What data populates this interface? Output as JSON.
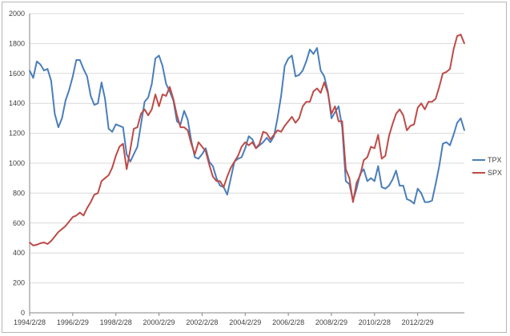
{
  "chart_data": {
    "type": "line",
    "title": "",
    "xlabel": "",
    "ylabel": "",
    "ylim": [
      0,
      2000
    ],
    "y_ticks": [
      0,
      200,
      400,
      600,
      800,
      1000,
      1200,
      1400,
      1600,
      1800,
      2000
    ],
    "x_ticks": [
      "1994/2/28",
      "1996/2/29",
      "1998/2/28",
      "2000/2/29",
      "2002/2/28",
      "2004/2/29",
      "2006/2/28",
      "2008/2/29",
      "2010/2/28",
      "2012/2/29"
    ],
    "grid": "horizontal",
    "legend_position": "right",
    "x_start": "1994-02",
    "x_end": "2014-04",
    "series": [
      {
        "name": "TPX",
        "color": "#4a7ebb",
        "points": [
          [
            "1994-02",
            1620
          ],
          [
            "1994-04",
            1570
          ],
          [
            "1994-06",
            1680
          ],
          [
            "1994-08",
            1660
          ],
          [
            "1994-10",
            1620
          ],
          [
            "1994-12",
            1630
          ],
          [
            "1995-02",
            1550
          ],
          [
            "1995-04",
            1330
          ],
          [
            "1995-06",
            1240
          ],
          [
            "1995-08",
            1300
          ],
          [
            "1995-10",
            1420
          ],
          [
            "1995-12",
            1490
          ],
          [
            "1996-02",
            1580
          ],
          [
            "1996-04",
            1690
          ],
          [
            "1996-06",
            1690
          ],
          [
            "1996-08",
            1630
          ],
          [
            "1996-10",
            1580
          ],
          [
            "1996-12",
            1450
          ],
          [
            "1997-02",
            1390
          ],
          [
            "1997-04",
            1400
          ],
          [
            "1997-06",
            1540
          ],
          [
            "1997-08",
            1430
          ],
          [
            "1997-10",
            1230
          ],
          [
            "1997-12",
            1210
          ],
          [
            "1998-02",
            1260
          ],
          [
            "1998-04",
            1250
          ],
          [
            "1998-06",
            1240
          ],
          [
            "1998-08",
            1060
          ],
          [
            "1998-10",
            1010
          ],
          [
            "1998-12",
            1060
          ],
          [
            "1999-02",
            1110
          ],
          [
            "1999-04",
            1260
          ],
          [
            "1999-06",
            1410
          ],
          [
            "1999-08",
            1440
          ],
          [
            "1999-10",
            1530
          ],
          [
            "1999-12",
            1700
          ],
          [
            "2000-02",
            1720
          ],
          [
            "2000-04",
            1650
          ],
          [
            "2000-06",
            1530
          ],
          [
            "2000-08",
            1480
          ],
          [
            "2000-10",
            1420
          ],
          [
            "2000-12",
            1280
          ],
          [
            "2001-02",
            1260
          ],
          [
            "2001-04",
            1350
          ],
          [
            "2001-06",
            1290
          ],
          [
            "2001-08",
            1150
          ],
          [
            "2001-10",
            1040
          ],
          [
            "2001-12",
            1030
          ],
          [
            "2002-02",
            1060
          ],
          [
            "2002-04",
            1100
          ],
          [
            "2002-06",
            1010
          ],
          [
            "2002-08",
            980
          ],
          [
            "2002-10",
            900
          ],
          [
            "2002-12",
            850
          ],
          [
            "2003-02",
            840
          ],
          [
            "2003-04",
            790
          ],
          [
            "2003-06",
            900
          ],
          [
            "2003-08",
            1010
          ],
          [
            "2003-10",
            1030
          ],
          [
            "2003-12",
            1040
          ],
          [
            "2004-02",
            1100
          ],
          [
            "2004-04",
            1180
          ],
          [
            "2004-06",
            1160
          ],
          [
            "2004-08",
            1100
          ],
          [
            "2004-10",
            1120
          ],
          [
            "2004-12",
            1140
          ],
          [
            "2005-02",
            1170
          ],
          [
            "2005-04",
            1140
          ],
          [
            "2005-06",
            1180
          ],
          [
            "2005-08",
            1300
          ],
          [
            "2005-10",
            1450
          ],
          [
            "2005-12",
            1650
          ],
          [
            "2006-02",
            1700
          ],
          [
            "2006-04",
            1720
          ],
          [
            "2006-06",
            1580
          ],
          [
            "2006-08",
            1590
          ],
          [
            "2006-10",
            1620
          ],
          [
            "2006-12",
            1680
          ],
          [
            "2007-02",
            1760
          ],
          [
            "2007-04",
            1730
          ],
          [
            "2007-06",
            1770
          ],
          [
            "2007-08",
            1620
          ],
          [
            "2007-10",
            1580
          ],
          [
            "2007-12",
            1480
          ],
          [
            "2008-02",
            1300
          ],
          [
            "2008-04",
            1340
          ],
          [
            "2008-06",
            1380
          ],
          [
            "2008-08",
            1240
          ],
          [
            "2008-10",
            880
          ],
          [
            "2008-12",
            860
          ],
          [
            "2009-02",
            750
          ],
          [
            "2009-04",
            830
          ],
          [
            "2009-06",
            930
          ],
          [
            "2009-08",
            960
          ],
          [
            "2009-10",
            880
          ],
          [
            "2009-12",
            900
          ],
          [
            "2010-02",
            880
          ],
          [
            "2010-04",
            980
          ],
          [
            "2010-06",
            840
          ],
          [
            "2010-08",
            830
          ],
          [
            "2010-10",
            850
          ],
          [
            "2010-12",
            890
          ],
          [
            "2011-02",
            950
          ],
          [
            "2011-04",
            850
          ],
          [
            "2011-06",
            850
          ],
          [
            "2011-08",
            760
          ],
          [
            "2011-10",
            750
          ],
          [
            "2011-12",
            730
          ],
          [
            "2012-02",
            830
          ],
          [
            "2012-04",
            800
          ],
          [
            "2012-06",
            740
          ],
          [
            "2012-08",
            740
          ],
          [
            "2012-10",
            750
          ],
          [
            "2012-12",
            860
          ],
          [
            "2013-02",
            980
          ],
          [
            "2013-04",
            1130
          ],
          [
            "2013-06",
            1140
          ],
          [
            "2013-08",
            1120
          ],
          [
            "2013-10",
            1190
          ],
          [
            "2013-12",
            1270
          ],
          [
            "2014-02",
            1300
          ],
          [
            "2014-04",
            1220
          ]
        ]
      },
      {
        "name": "SPX",
        "color": "#be4b48",
        "points": [
          [
            "1994-02",
            470
          ],
          [
            "1994-04",
            450
          ],
          [
            "1994-06",
            455
          ],
          [
            "1994-08",
            465
          ],
          [
            "1994-10",
            470
          ],
          [
            "1994-12",
            460
          ],
          [
            "1995-02",
            480
          ],
          [
            "1995-04",
            510
          ],
          [
            "1995-06",
            540
          ],
          [
            "1995-08",
            560
          ],
          [
            "1995-10",
            580
          ],
          [
            "1995-12",
            610
          ],
          [
            "1996-02",
            640
          ],
          [
            "1996-04",
            650
          ],
          [
            "1996-06",
            670
          ],
          [
            "1996-08",
            650
          ],
          [
            "1996-10",
            700
          ],
          [
            "1996-12",
            740
          ],
          [
            "1997-02",
            790
          ],
          [
            "1997-04",
            800
          ],
          [
            "1997-06",
            880
          ],
          [
            "1997-08",
            900
          ],
          [
            "1997-10",
            920
          ],
          [
            "1997-12",
            970
          ],
          [
            "1998-02",
            1050
          ],
          [
            "1998-04",
            1110
          ],
          [
            "1998-06",
            1130
          ],
          [
            "1998-08",
            960
          ],
          [
            "1998-10",
            1090
          ],
          [
            "1998-12",
            1230
          ],
          [
            "1999-02",
            1240
          ],
          [
            "1999-04",
            1330
          ],
          [
            "1999-06",
            1360
          ],
          [
            "1999-08",
            1320
          ],
          [
            "1999-10",
            1360
          ],
          [
            "1999-12",
            1460
          ],
          [
            "2000-02",
            1380
          ],
          [
            "2000-04",
            1460
          ],
          [
            "2000-06",
            1450
          ],
          [
            "2000-08",
            1510
          ],
          [
            "2000-10",
            1430
          ],
          [
            "2000-12",
            1320
          ],
          [
            "2001-02",
            1240
          ],
          [
            "2001-04",
            1240
          ],
          [
            "2001-06",
            1220
          ],
          [
            "2001-08",
            1130
          ],
          [
            "2001-10",
            1060
          ],
          [
            "2001-12",
            1140
          ],
          [
            "2002-02",
            1110
          ],
          [
            "2002-04",
            1080
          ],
          [
            "2002-06",
            990
          ],
          [
            "2002-08",
            910
          ],
          [
            "2002-10",
            880
          ],
          [
            "2002-12",
            880
          ],
          [
            "2003-02",
            840
          ],
          [
            "2003-04",
            910
          ],
          [
            "2003-06",
            970
          ],
          [
            "2003-08",
            1010
          ],
          [
            "2003-10",
            1050
          ],
          [
            "2003-12",
            1110
          ],
          [
            "2004-02",
            1140
          ],
          [
            "2004-04",
            1120
          ],
          [
            "2004-06",
            1140
          ],
          [
            "2004-08",
            1100
          ],
          [
            "2004-10",
            1130
          ],
          [
            "2004-12",
            1210
          ],
          [
            "2005-02",
            1200
          ],
          [
            "2005-04",
            1160
          ],
          [
            "2005-06",
            1190
          ],
          [
            "2005-08",
            1220
          ],
          [
            "2005-10",
            1210
          ],
          [
            "2005-12",
            1250
          ],
          [
            "2006-02",
            1280
          ],
          [
            "2006-04",
            1310
          ],
          [
            "2006-06",
            1270
          ],
          [
            "2006-08",
            1300
          ],
          [
            "2006-10",
            1380
          ],
          [
            "2006-12",
            1410
          ],
          [
            "2007-02",
            1410
          ],
          [
            "2007-04",
            1480
          ],
          [
            "2007-06",
            1500
          ],
          [
            "2007-08",
            1470
          ],
          [
            "2007-10",
            1540
          ],
          [
            "2007-12",
            1470
          ],
          [
            "2008-02",
            1330
          ],
          [
            "2008-04",
            1380
          ],
          [
            "2008-06",
            1280
          ],
          [
            "2008-08",
            1280
          ],
          [
            "2008-10",
            960
          ],
          [
            "2008-12",
            900
          ],
          [
            "2009-02",
            740
          ],
          [
            "2009-04",
            870
          ],
          [
            "2009-06",
            920
          ],
          [
            "2009-08",
            1020
          ],
          [
            "2009-10",
            1040
          ],
          [
            "2009-12",
            1110
          ],
          [
            "2010-02",
            1100
          ],
          [
            "2010-04",
            1190
          ],
          [
            "2010-06",
            1030
          ],
          [
            "2010-08",
            1050
          ],
          [
            "2010-10",
            1180
          ],
          [
            "2010-12",
            1260
          ],
          [
            "2011-02",
            1330
          ],
          [
            "2011-04",
            1360
          ],
          [
            "2011-06",
            1320
          ],
          [
            "2011-08",
            1220
          ],
          [
            "2011-10",
            1250
          ],
          [
            "2011-12",
            1260
          ],
          [
            "2012-02",
            1370
          ],
          [
            "2012-04",
            1400
          ],
          [
            "2012-06",
            1360
          ],
          [
            "2012-08",
            1410
          ],
          [
            "2012-10",
            1410
          ],
          [
            "2012-12",
            1430
          ],
          [
            "2013-02",
            1510
          ],
          [
            "2013-04",
            1600
          ],
          [
            "2013-06",
            1610
          ],
          [
            "2013-08",
            1630
          ],
          [
            "2013-10",
            1760
          ],
          [
            "2013-12",
            1850
          ],
          [
            "2014-02",
            1860
          ],
          [
            "2014-04",
            1800
          ]
        ]
      }
    ]
  }
}
